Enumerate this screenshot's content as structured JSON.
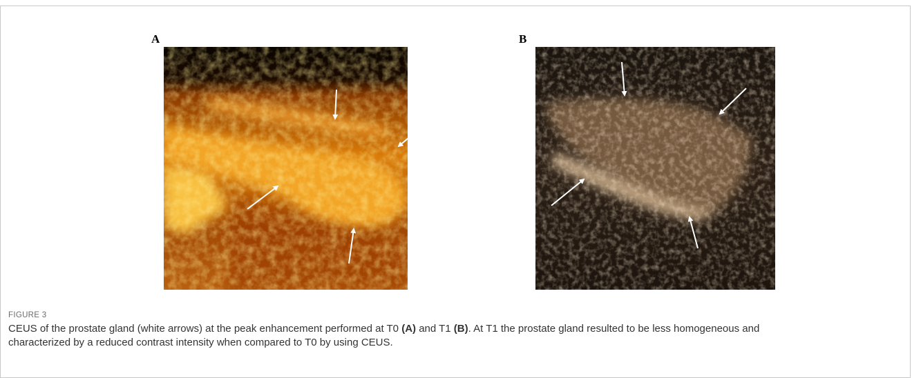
{
  "figure": {
    "panels": [
      {
        "label": "A"
      },
      {
        "label": "B"
      }
    ],
    "label": "FIGURE 3",
    "caption": [
      {
        "text": "CEUS of the prostate gland (white arrows) at the peak enhancement performed at T0 "
      },
      {
        "text": "(A)",
        "bold": true
      },
      {
        "text": " and T1 "
      },
      {
        "text": "(B)",
        "bold": true
      },
      {
        "text": ". At T1 the prostate gland resulted to be less homogeneous and characterized by a reduced contrast intensity when compared to T0 by using CEUS."
      }
    ]
  }
}
